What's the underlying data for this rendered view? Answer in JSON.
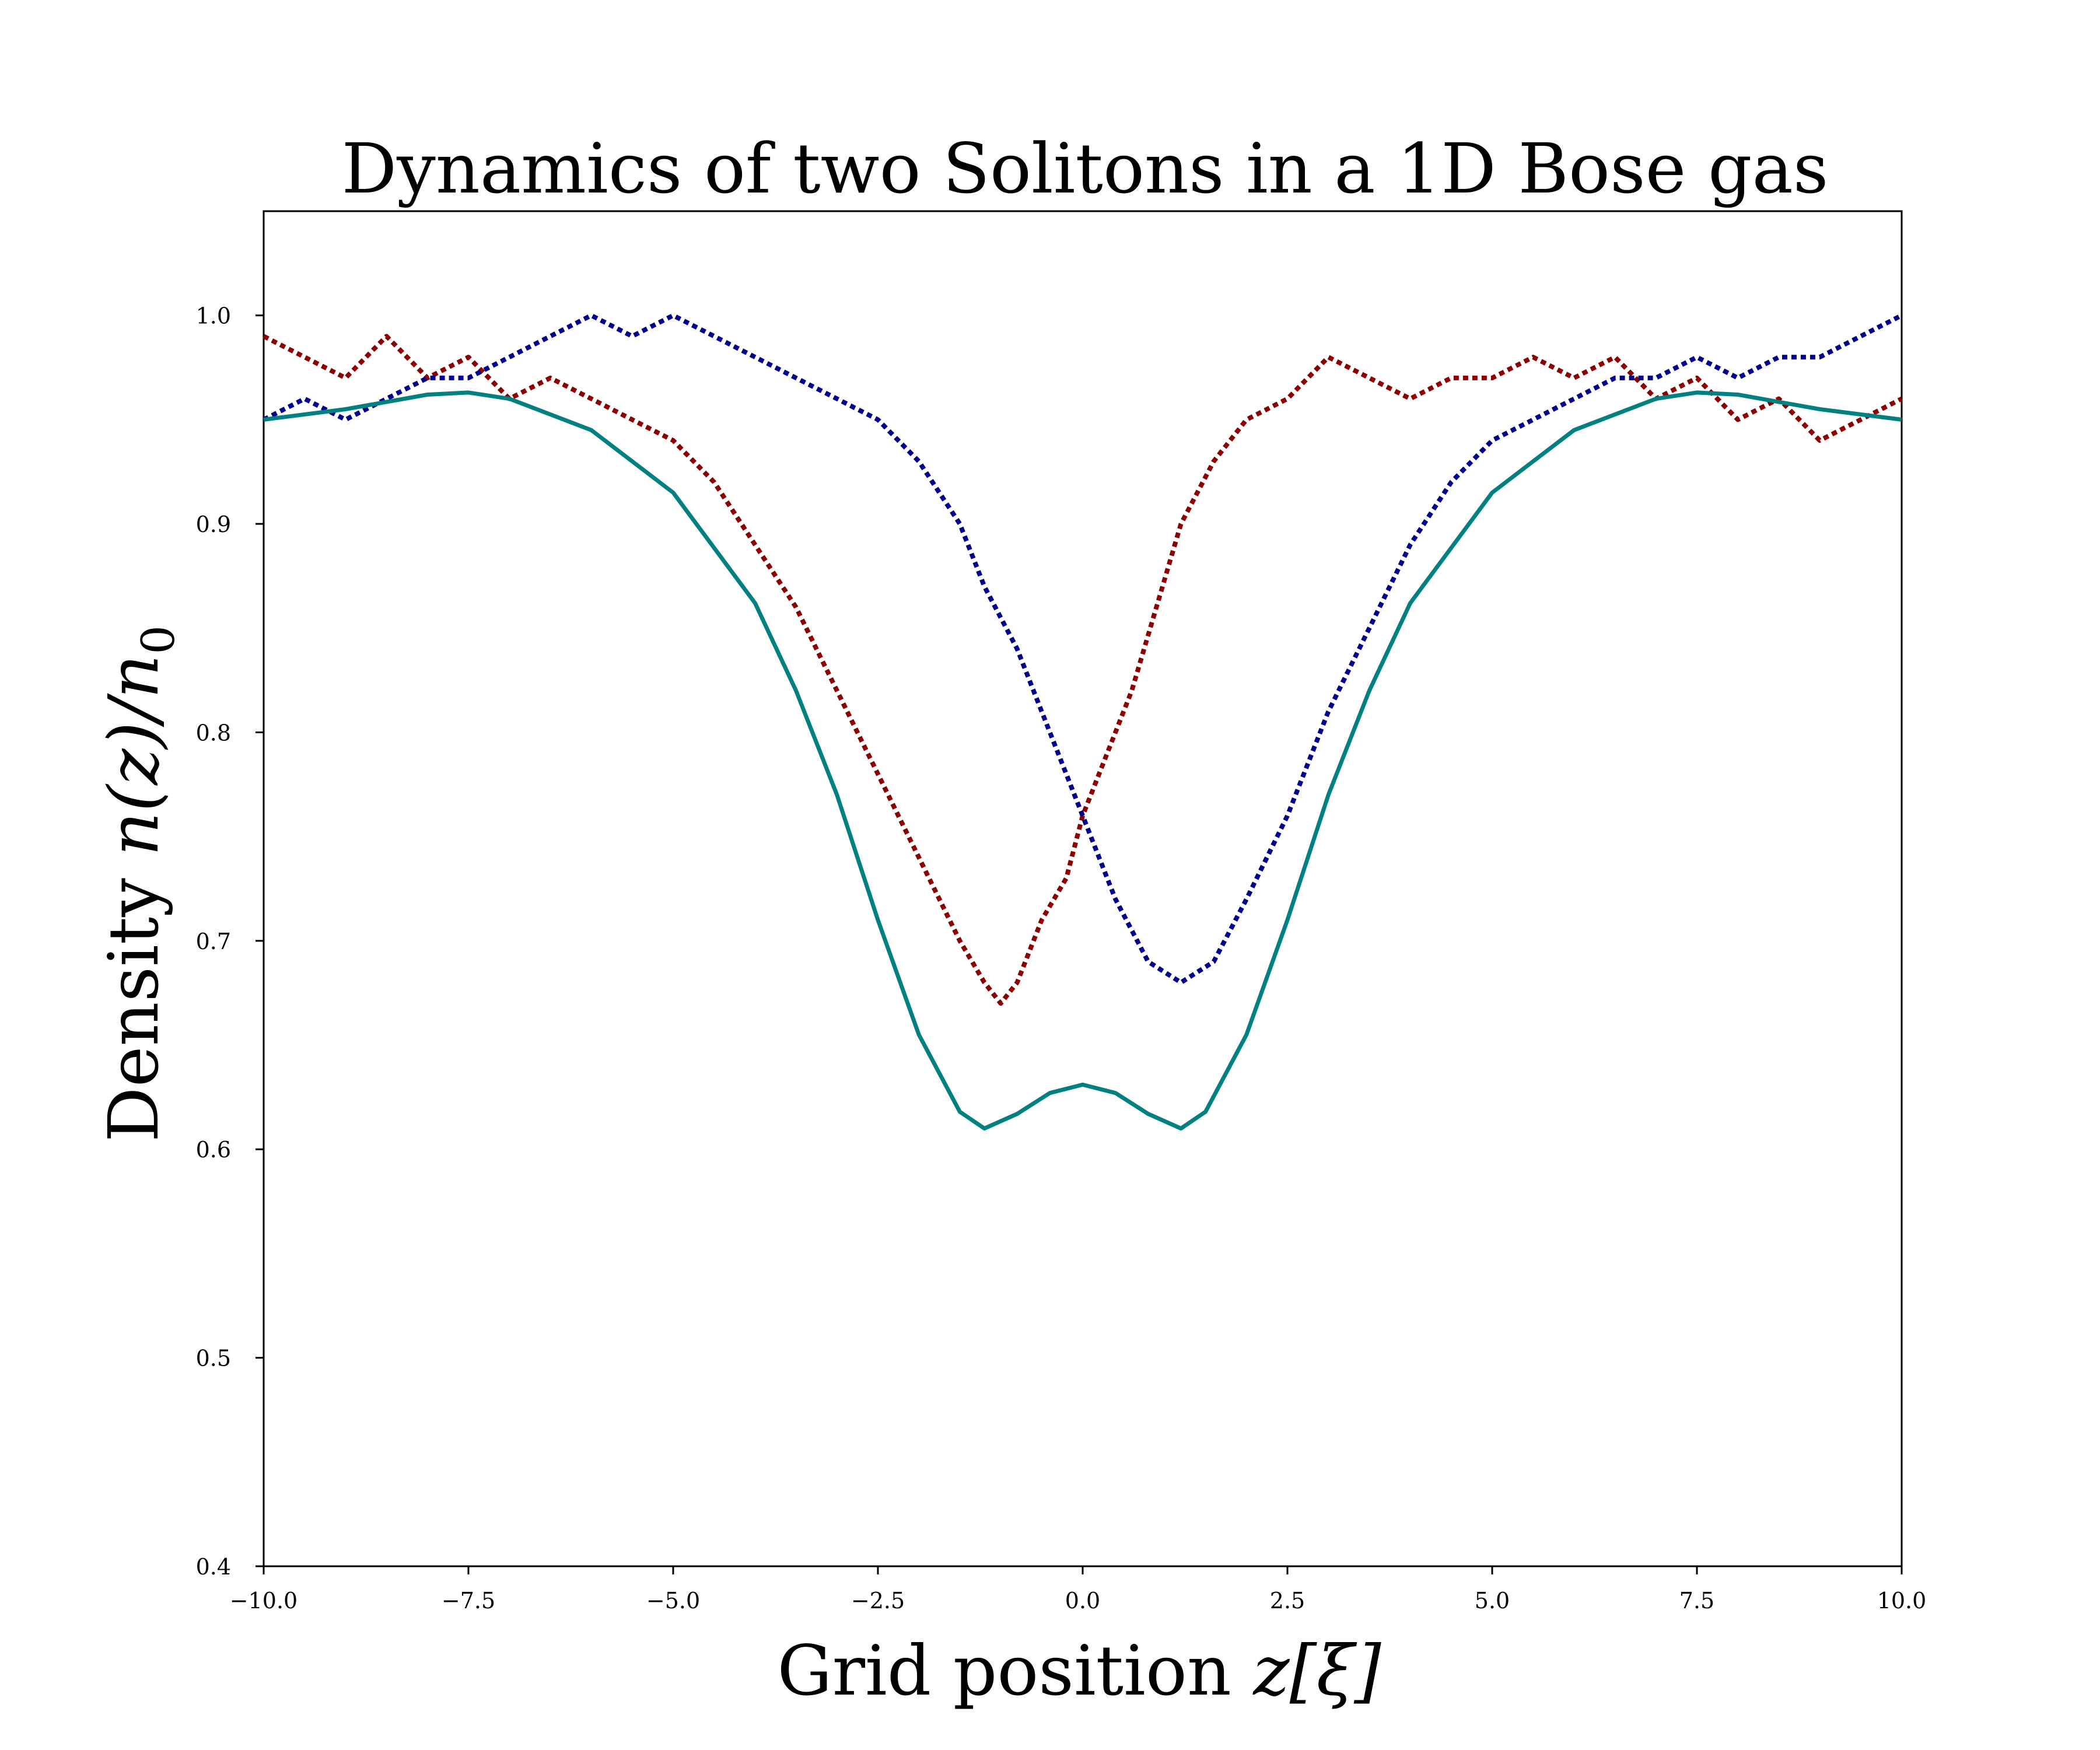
{
  "chart_data": {
    "type": "line",
    "title": "Dynamics of two Solitons in a 1D Bose gas",
    "xlabel_text": "Grid position ",
    "xlabel_math": "z[ξ]",
    "ylabel_text": "Density ",
    "ylabel_math": "n(z)/n",
    "ylabel_sub": "0",
    "xlim": [
      -10,
      10
    ],
    "ylim": [
      0.4,
      1.05
    ],
    "xticks": [
      -10.0,
      -7.5,
      -5.0,
      -2.5,
      0.0,
      2.5,
      5.0,
      7.5,
      10.0
    ],
    "xtick_labels": [
      "−10.0",
      "−7.5",
      "−5.0",
      "−2.5",
      "0.0",
      "2.5",
      "5.0",
      "7.5",
      "10.0"
    ],
    "yticks": [
      0.4,
      0.5,
      0.6,
      0.7,
      0.8,
      0.9,
      1.0
    ],
    "ytick_labels": [
      "0.4",
      "0.5",
      "0.6",
      "0.7",
      "0.8",
      "0.9",
      "1.0"
    ],
    "grid": false,
    "legend": "none",
    "series": [
      {
        "style": "solid",
        "color": "#008080",
        "x": [
          -10,
          -9,
          -8,
          -7.5,
          -7,
          -6,
          -5,
          -4,
          -3.5,
          -3,
          -2.5,
          -2,
          -1.5,
          -1.2,
          -0.8,
          -0.4,
          0,
          0.4,
          0.8,
          1.2,
          1.5,
          2,
          2.5,
          3,
          3.5,
          4,
          5,
          6,
          7,
          7.5,
          8,
          9,
          10
        ],
        "y": [
          0.95,
          0.955,
          0.962,
          0.963,
          0.96,
          0.945,
          0.915,
          0.862,
          0.82,
          0.77,
          0.71,
          0.655,
          0.618,
          0.61,
          0.617,
          0.627,
          0.631,
          0.627,
          0.617,
          0.61,
          0.618,
          0.655,
          0.71,
          0.77,
          0.82,
          0.862,
          0.915,
          0.945,
          0.96,
          0.963,
          0.962,
          0.955,
          0.95
        ]
      },
      {
        "style": "dotted",
        "color": "#8b0000",
        "x": [
          -10,
          -9.5,
          -9,
          -8.5,
          -8,
          -7.5,
          -7,
          -6.5,
          -6,
          -5.5,
          -5,
          -4.5,
          -4,
          -3.5,
          -3,
          -2.5,
          -2,
          -1.5,
          -1.2,
          -1,
          -0.8,
          -0.5,
          -0.2,
          0,
          0.3,
          0.6,
          0.9,
          1.2,
          1.6,
          2,
          2.5,
          3,
          3.5,
          4,
          4.5,
          5,
          5.5,
          6,
          6.5,
          7,
          7.5,
          8,
          8.5,
          9,
          9.5,
          10
        ],
        "y": [
          0.99,
          0.98,
          0.97,
          0.99,
          0.97,
          0.98,
          0.96,
          0.97,
          0.96,
          0.95,
          0.94,
          0.92,
          0.89,
          0.86,
          0.82,
          0.78,
          0.74,
          0.7,
          0.68,
          0.67,
          0.68,
          0.71,
          0.73,
          0.76,
          0.79,
          0.82,
          0.86,
          0.9,
          0.93,
          0.95,
          0.96,
          0.98,
          0.97,
          0.96,
          0.97,
          0.97,
          0.98,
          0.97,
          0.98,
          0.96,
          0.97,
          0.95,
          0.96,
          0.94,
          0.95,
          0.96
        ]
      },
      {
        "style": "dotted",
        "color": "#00008b",
        "x": [
          -10,
          -9.5,
          -9,
          -8.5,
          -8,
          -7.5,
          -7,
          -6.5,
          -6,
          -5.5,
          -5,
          -4.5,
          -4,
          -3.5,
          -3,
          -2.5,
          -2,
          -1.5,
          -1.2,
          -0.8,
          -0.4,
          0,
          0.4,
          0.8,
          1.2,
          1.6,
          2,
          2.5,
          3,
          3.5,
          4,
          4.5,
          5,
          5.5,
          6,
          6.5,
          7,
          7.5,
          8,
          8.5,
          9,
          9.5,
          10
        ],
        "y": [
          0.95,
          0.96,
          0.95,
          0.96,
          0.97,
          0.97,
          0.98,
          0.99,
          1.0,
          0.99,
          1.0,
          0.99,
          0.98,
          0.97,
          0.96,
          0.95,
          0.93,
          0.9,
          0.87,
          0.84,
          0.8,
          0.76,
          0.72,
          0.69,
          0.68,
          0.69,
          0.72,
          0.76,
          0.81,
          0.85,
          0.89,
          0.92,
          0.94,
          0.95,
          0.96,
          0.97,
          0.97,
          0.98,
          0.97,
          0.98,
          0.98,
          0.99,
          1.0
        ]
      }
    ]
  }
}
